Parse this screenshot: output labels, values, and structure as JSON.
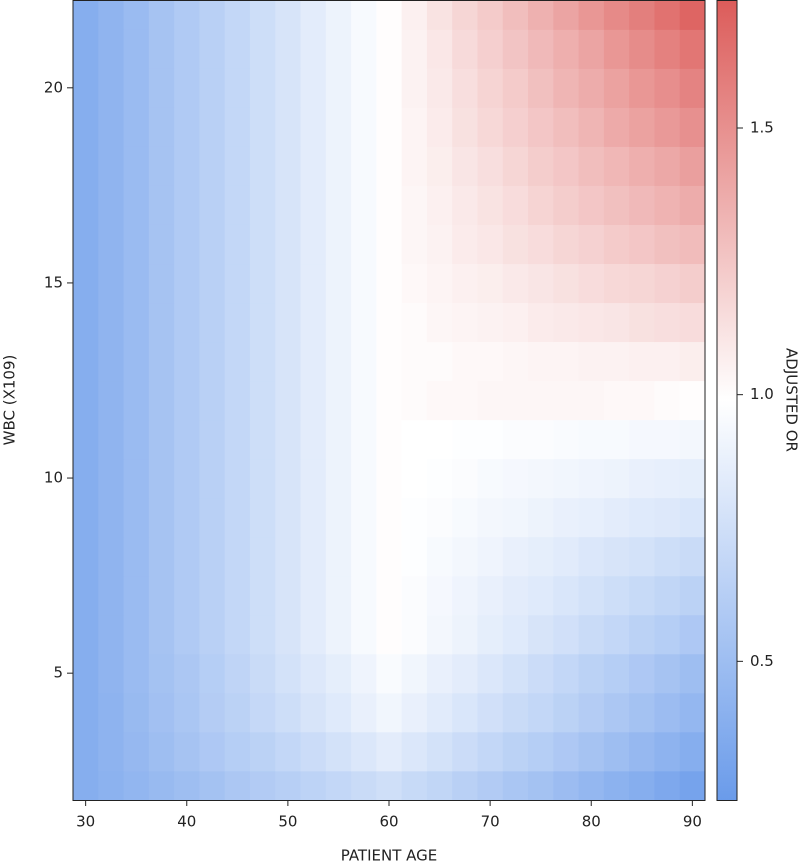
{
  "chart_data": {
    "type": "heatmap",
    "x_label": "PATIENT AGE",
    "y_label": "WBC (X109)",
    "colorbar_label": "ADJUSTED OR",
    "x": [
      30,
      32.5,
      35,
      37.5,
      40,
      42.5,
      45,
      47.5,
      50,
      52.5,
      55,
      57.5,
      60,
      62.5,
      65,
      67.5,
      70,
      72.5,
      75,
      77.5,
      80,
      82.5,
      85,
      87.5,
      90
    ],
    "y": [
      2,
      3,
      4,
      5,
      6,
      7,
      8,
      9,
      10,
      11,
      12,
      13,
      14,
      15,
      16,
      17,
      18,
      19,
      20,
      21,
      22
    ],
    "z": [
      [
        0.38,
        0.41,
        0.44,
        0.47,
        0.5,
        0.53,
        0.57,
        0.6,
        0.63,
        0.66,
        0.69,
        0.72,
        0.75,
        0.71,
        0.68,
        0.64,
        0.6,
        0.56,
        0.53,
        0.49,
        0.45,
        0.41,
        0.38,
        0.34,
        0.3
      ],
      [
        0.38,
        0.42,
        0.46,
        0.5,
        0.54,
        0.58,
        0.62,
        0.65,
        0.69,
        0.73,
        0.77,
        0.81,
        0.85,
        0.81,
        0.77,
        0.73,
        0.69,
        0.65,
        0.62,
        0.58,
        0.54,
        0.5,
        0.46,
        0.42,
        0.38
      ],
      [
        0.38,
        0.42,
        0.47,
        0.52,
        0.56,
        0.61,
        0.65,
        0.7,
        0.74,
        0.79,
        0.83,
        0.88,
        0.92,
        0.88,
        0.84,
        0.8,
        0.76,
        0.72,
        0.69,
        0.65,
        0.61,
        0.57,
        0.53,
        0.49,
        0.45
      ],
      [
        0.38,
        0.43,
        0.48,
        0.53,
        0.57,
        0.62,
        0.67,
        0.72,
        0.77,
        0.82,
        0.86,
        0.91,
        0.96,
        0.92,
        0.88,
        0.85,
        0.81,
        0.77,
        0.73,
        0.69,
        0.65,
        0.62,
        0.58,
        0.54,
        0.5
      ],
      [
        0.38,
        0.43,
        0.48,
        0.54,
        0.59,
        0.64,
        0.69,
        0.74,
        0.79,
        0.85,
        0.9,
        0.95,
        1,
        0.97,
        0.93,
        0.9,
        0.86,
        0.83,
        0.79,
        0.76,
        0.72,
        0.69,
        0.65,
        0.62,
        0.58
      ],
      [
        0.38,
        0.43,
        0.48,
        0.54,
        0.59,
        0.64,
        0.69,
        0.74,
        0.79,
        0.85,
        0.9,
        0.95,
        1,
        0.97,
        0.94,
        0.91,
        0.88,
        0.85,
        0.83,
        0.8,
        0.77,
        0.74,
        0.71,
        0.68,
        0.65
      ],
      [
        0.38,
        0.43,
        0.48,
        0.54,
        0.59,
        0.64,
        0.69,
        0.74,
        0.79,
        0.85,
        0.9,
        0.95,
        1,
        0.98,
        0.95,
        0.93,
        0.91,
        0.88,
        0.86,
        0.84,
        0.81,
        0.79,
        0.77,
        0.74,
        0.72
      ],
      [
        0.38,
        0.43,
        0.48,
        0.54,
        0.59,
        0.64,
        0.69,
        0.74,
        0.79,
        0.85,
        0.9,
        0.95,
        1,
        0.98,
        0.97,
        0.95,
        0.93,
        0.92,
        0.9,
        0.88,
        0.87,
        0.85,
        0.83,
        0.82,
        0.8
      ],
      [
        0.38,
        0.43,
        0.48,
        0.54,
        0.59,
        0.64,
        0.69,
        0.74,
        0.79,
        0.85,
        0.9,
        0.95,
        1,
        0.99,
        0.98,
        0.97,
        0.95,
        0.94,
        0.93,
        0.92,
        0.91,
        0.9,
        0.88,
        0.87,
        0.86
      ],
      [
        0.38,
        0.43,
        0.48,
        0.54,
        0.59,
        0.64,
        0.69,
        0.74,
        0.79,
        0.85,
        0.9,
        0.95,
        1,
        0.99,
        0.99,
        0.98,
        0.98,
        0.97,
        0.97,
        0.96,
        0.95,
        0.95,
        0.94,
        0.94,
        0.93
      ],
      [
        0.38,
        0.43,
        0.48,
        0.54,
        0.59,
        0.64,
        0.69,
        0.74,
        0.79,
        0.85,
        0.9,
        0.95,
        1,
        1.01,
        1.02,
        1.02,
        1.03,
        1.03,
        1.03,
        1.03,
        1.03,
        1.02,
        1.02,
        1.01,
        1.0
      ],
      [
        0.38,
        0.43,
        0.48,
        0.54,
        0.59,
        0.64,
        0.69,
        0.74,
        0.79,
        0.85,
        0.9,
        0.95,
        1,
        1.01,
        1.01,
        1.02,
        1.02,
        1.03,
        1.04,
        1.04,
        1.05,
        1.05,
        1.06,
        1.06,
        1.07
      ],
      [
        0.38,
        0.43,
        0.48,
        0.54,
        0.59,
        0.64,
        0.69,
        0.74,
        0.79,
        0.85,
        0.9,
        0.95,
        1,
        1.01,
        1.03,
        1.04,
        1.05,
        1.06,
        1.08,
        1.09,
        1.1,
        1.11,
        1.13,
        1.14,
        1.15
      ],
      [
        0.38,
        0.43,
        0.48,
        0.54,
        0.59,
        0.64,
        0.69,
        0.74,
        0.79,
        0.85,
        0.9,
        0.95,
        1,
        1.02,
        1.04,
        1.06,
        1.07,
        1.09,
        1.11,
        1.13,
        1.15,
        1.17,
        1.18,
        1.2,
        1.22
      ],
      [
        0.38,
        0.43,
        0.48,
        0.54,
        0.59,
        0.64,
        0.69,
        0.74,
        0.79,
        0.85,
        0.9,
        0.95,
        1,
        1.03,
        1.05,
        1.08,
        1.1,
        1.13,
        1.15,
        1.18,
        1.2,
        1.23,
        1.25,
        1.28,
        1.3
      ],
      [
        0.38,
        0.43,
        0.48,
        0.54,
        0.59,
        0.64,
        0.69,
        0.74,
        0.79,
        0.85,
        0.9,
        0.95,
        1,
        1.03,
        1.06,
        1.09,
        1.12,
        1.15,
        1.19,
        1.22,
        1.25,
        1.28,
        1.31,
        1.34,
        1.37
      ],
      [
        0.38,
        0.43,
        0.48,
        0.54,
        0.59,
        0.64,
        0.69,
        0.74,
        0.79,
        0.85,
        0.9,
        0.95,
        1,
        1.04,
        1.07,
        1.11,
        1.14,
        1.18,
        1.22,
        1.25,
        1.29,
        1.32,
        1.36,
        1.39,
        1.43
      ],
      [
        0.38,
        0.43,
        0.48,
        0.54,
        0.59,
        0.64,
        0.69,
        0.74,
        0.79,
        0.85,
        0.9,
        0.95,
        1,
        1.04,
        1.08,
        1.13,
        1.17,
        1.21,
        1.25,
        1.29,
        1.33,
        1.38,
        1.42,
        1.46,
        1.5
      ],
      [
        0.38,
        0.43,
        0.48,
        0.54,
        0.59,
        0.64,
        0.69,
        0.74,
        0.79,
        0.85,
        0.9,
        0.95,
        1,
        1.05,
        1.09,
        1.14,
        1.19,
        1.23,
        1.28,
        1.33,
        1.37,
        1.42,
        1.47,
        1.51,
        1.56
      ],
      [
        0.38,
        0.43,
        0.48,
        0.54,
        0.59,
        0.64,
        0.69,
        0.74,
        0.79,
        0.85,
        0.9,
        0.95,
        1,
        1.05,
        1.1,
        1.16,
        1.21,
        1.26,
        1.31,
        1.36,
        1.41,
        1.47,
        1.52,
        1.57,
        1.62
      ],
      [
        0.38,
        0.43,
        0.48,
        0.54,
        0.59,
        0.64,
        0.69,
        0.74,
        0.79,
        0.85,
        0.9,
        0.95,
        1,
        1.06,
        1.12,
        1.18,
        1.23,
        1.29,
        1.35,
        1.41,
        1.47,
        1.53,
        1.58,
        1.64,
        1.7
      ]
    ],
    "xlim": [
      28.75,
      91.25
    ],
    "xticks": [
      30,
      40,
      50,
      60,
      70,
      80,
      90
    ],
    "ylim": [
      1.75,
      22.25
    ],
    "yticks": [
      5,
      10,
      15,
      20
    ],
    "clim": [
      0.24,
      1.74
    ],
    "cticks": [
      0.5,
      {
        "value": 1,
        "label": "1.0"
      },
      1.5
    ],
    "colorscale": [
      "#6a9bea",
      "#ffffff",
      "#dc5c5a"
    ]
  }
}
